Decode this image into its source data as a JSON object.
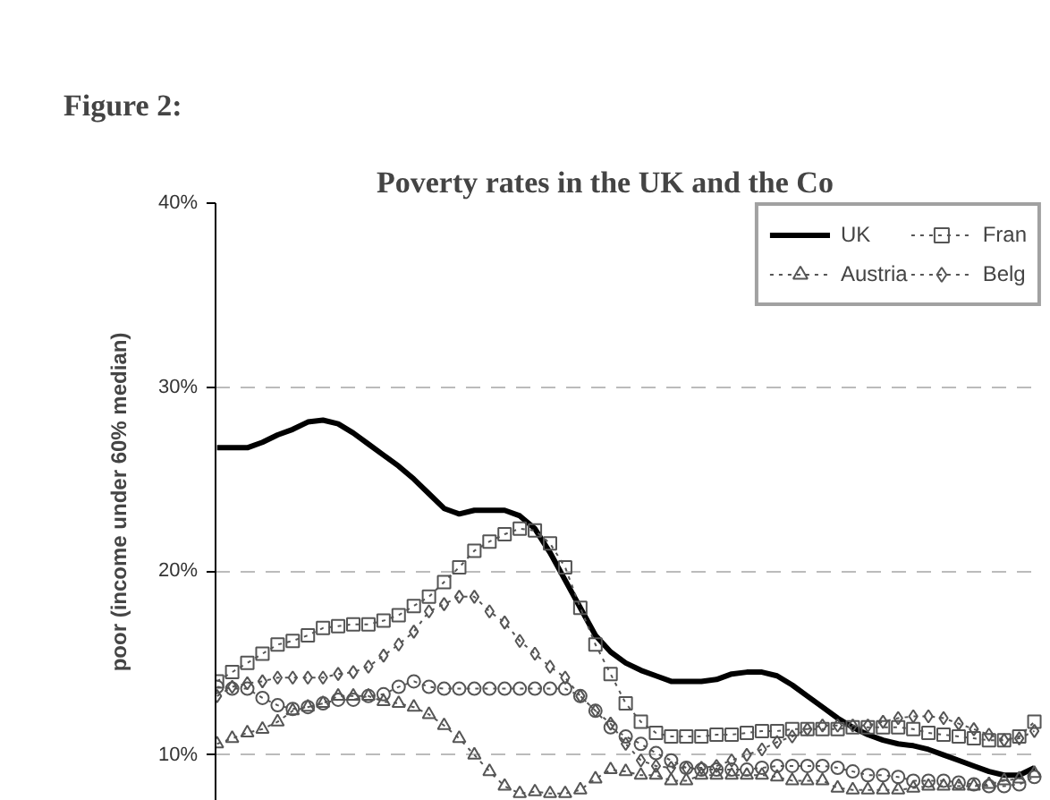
{
  "chart_data": {
    "type": "line",
    "title": "Figure 2:",
    "subtitle": "Poverty rates in the UK and the Co",
    "ylabel": "poor (income under 60% median)",
    "categories": [
      null,
      null,
      null,
      null,
      null,
      null,
      null,
      null,
      null,
      null,
      null,
      null,
      null,
      null,
      null,
      null,
      null,
      null,
      null,
      null,
      null,
      null,
      null,
      null,
      null,
      null,
      null,
      null,
      null,
      null,
      null,
      null,
      null,
      null,
      null,
      null,
      null,
      null,
      null,
      null,
      null,
      null,
      null,
      null,
      null,
      null,
      null,
      null,
      null,
      null,
      null,
      null,
      null,
      null,
      null
    ],
    "ylim": [
      7.5,
      40
    ],
    "yticks": [
      {
        "value": 10,
        "label": "10%"
      },
      {
        "value": 20,
        "label": "20%"
      },
      {
        "value": 30,
        "label": "30%"
      },
      {
        "value": 40,
        "label": "40%"
      }
    ],
    "grid": "y",
    "legend": "top right",
    "tick_labels": "y",
    "series": [
      {
        "name": "UK",
        "color": "#000000",
        "marker": "none",
        "line_style": "solid",
        "values": [
          26.7,
          26.7,
          26.7,
          27.0,
          27.4,
          27.7,
          28.1,
          28.2,
          28.0,
          27.5,
          26.9,
          26.3,
          25.7,
          25.0,
          24.2,
          23.4,
          23.1,
          23.3,
          23.3,
          23.3,
          23.0,
          22.3,
          21.0,
          19.5,
          18.0,
          16.5,
          15.6,
          15.0,
          14.6,
          14.3,
          14.0,
          14.0,
          14.0,
          14.1,
          14.4,
          14.5,
          14.5,
          14.3,
          13.8,
          13.2,
          12.6,
          12.0,
          11.5,
          11.1,
          10.8,
          10.6,
          10.5,
          10.3,
          10.0,
          9.7,
          9.4,
          9.1,
          8.9,
          8.9,
          9.3
        ]
      },
      {
        "name": "Fran",
        "color": "#555555",
        "marker": "square",
        "line_style": "dotted",
        "values": [
          14.0,
          14.5,
          15.0,
          15.5,
          16.0,
          16.2,
          16.5,
          16.9,
          17.0,
          17.1,
          17.1,
          17.3,
          17.6,
          18.1,
          18.6,
          19.4,
          20.2,
          21.1,
          21.6,
          22.0,
          22.3,
          22.2,
          21.5,
          20.2,
          18.0,
          16.0,
          14.4,
          12.8,
          11.8,
          11.2,
          11.0,
          11.0,
          11.0,
          11.1,
          11.1,
          11.2,
          11.3,
          11.3,
          11.4,
          11.4,
          11.4,
          11.4,
          11.5,
          11.5,
          11.5,
          11.5,
          11.4,
          11.2,
          11.1,
          11.0,
          10.9,
          10.8,
          10.8,
          11.0,
          11.8
        ]
      },
      {
        "name": "Austria",
        "color": "#555555",
        "marker": "triangle",
        "line_style": "dotted",
        "values": [
          10.6,
          10.9,
          11.2,
          11.4,
          11.8,
          12.4,
          12.6,
          12.8,
          13.2,
          13.2,
          13.2,
          12.9,
          12.8,
          12.6,
          12.2,
          11.6,
          10.9,
          10.0,
          9.1,
          8.3,
          7.9,
          8.0,
          7.9,
          7.9,
          8.1,
          8.7,
          9.2,
          9.1,
          8.9,
          8.9,
          8.6,
          8.6,
          8.9,
          8.9,
          8.9,
          8.9,
          8.9,
          8.8,
          8.6,
          8.6,
          8.6,
          8.2,
          8.1,
          8.1,
          8.1,
          8.1,
          8.2,
          8.3,
          8.3,
          8.3,
          8.3,
          8.4,
          8.6,
          8.7,
          9.0
        ]
      },
      {
        "name": "Belg",
        "color": "#555555",
        "marker": "diamond",
        "line_style": "dotted",
        "values": [
          13.2,
          13.7,
          13.9,
          14.0,
          14.2,
          14.2,
          14.2,
          14.2,
          14.4,
          14.5,
          14.8,
          15.4,
          16.0,
          16.7,
          17.8,
          18.2,
          18.6,
          18.6,
          17.8,
          17.2,
          16.2,
          15.5,
          14.8,
          14.2,
          13.2,
          12.4,
          11.7,
          10.6,
          9.7,
          9.4,
          9.3,
          9.3,
          9.3,
          9.4,
          9.7,
          10.0,
          10.3,
          10.7,
          11.0,
          11.4,
          11.6,
          11.6,
          11.6,
          11.6,
          11.8,
          12.0,
          12.1,
          12.1,
          12.0,
          11.7,
          11.4,
          11.1,
          10.8,
          10.9,
          11.3
        ]
      },
      {
        "color": "#555555",
        "marker": "circle",
        "line_style": "dotted",
        "values": [
          13.7,
          13.6,
          13.6,
          13.1,
          12.7,
          12.5,
          12.6,
          12.8,
          13.0,
          13.0,
          13.2,
          13.3,
          13.7,
          14.0,
          13.7,
          13.6,
          13.6,
          13.6,
          13.6,
          13.6,
          13.6,
          13.6,
          13.6,
          13.6,
          13.2,
          12.4,
          11.5,
          11.0,
          10.6,
          10.1,
          9.7,
          9.3,
          9.2,
          9.2,
          9.2,
          9.2,
          9.3,
          9.4,
          9.4,
          9.4,
          9.4,
          9.3,
          9.1,
          8.9,
          8.9,
          8.8,
          8.6,
          8.6,
          8.6,
          8.5,
          8.4,
          8.3,
          8.3,
          8.4,
          8.8
        ]
      }
    ]
  }
}
